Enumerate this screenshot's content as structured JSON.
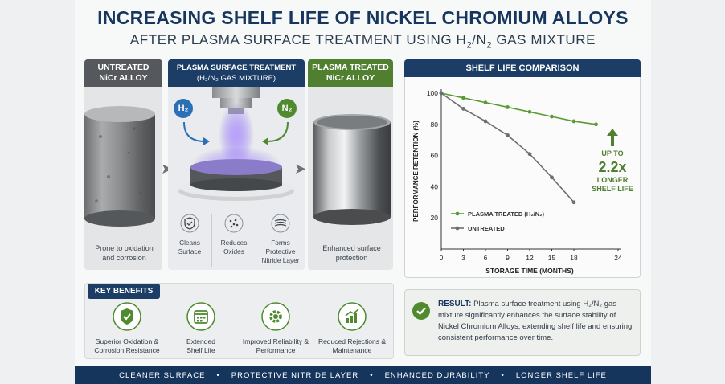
{
  "title": "INCREASING SHELF LIFE OF NICKEL CHROMIUM ALLOYS",
  "subtitle_prefix": "AFTER PLASMA SURFACE TREATMENT USING H",
  "subtitle_sub1": "2",
  "subtitle_mid": "/N",
  "subtitle_sub2": "2",
  "subtitle_suffix": " GAS MIXTURE",
  "panels": {
    "untreated": {
      "line1": "UNTREATED",
      "line2": "NiCr ALLOY",
      "caption": "Prone to oxidation and corrosion"
    },
    "plasma": {
      "line1": "PLASMA SURFACE TREATMENT",
      "line2": "(H₂/N₂ GAS MIXTURE)",
      "h2": "H₂",
      "n2": "N₂",
      "steps": [
        {
          "label": "Cleans Surface",
          "icon": "shield-check-icon"
        },
        {
          "label": "Reduces Oxides",
          "icon": "dots-icon"
        },
        {
          "label": "Forms Protective Nitride Layer",
          "icon": "layers-icon"
        }
      ]
    },
    "treated": {
      "line1": "PLASMA TREATED",
      "line2": "NiCr ALLOY",
      "caption": "Enhanced surface protection"
    }
  },
  "benefits": {
    "title": "KEY BENEFITS",
    "items": [
      {
        "label": "Superior Oxidation & Corrosion Resistance",
        "icon": "shield-check-icon"
      },
      {
        "label": "Extended Shelf Life",
        "icon": "calendar-icon"
      },
      {
        "label": "Improved Reliability & Performance",
        "icon": "gear-icon"
      },
      {
        "label": "Reduced Rejections & Maintenance",
        "icon": "bar-chart-icon"
      }
    ]
  },
  "chart_title": "SHELF LIFE COMPARISON",
  "annotation": {
    "line1": "UP TO",
    "value": "2.2x",
    "line2": "LONGER",
    "line3": "SHELF LIFE"
  },
  "chart_data": {
    "type": "line",
    "xlabel": "STORAGE TIME (MONTHS)",
    "ylabel": "PERFORMANCE RETENTION (%)",
    "x": [
      0,
      3,
      6,
      9,
      12,
      15,
      18,
      24
    ],
    "yticks": [
      0,
      20,
      40,
      60,
      80,
      100
    ],
    "xlim": [
      0,
      24
    ],
    "ylim": [
      0,
      100
    ],
    "legend_position": "bottom-left",
    "series": [
      {
        "name": "PLASMA TREATED (H₂/N₂)",
        "color": "#5a9a34",
        "x": [
          0,
          3,
          6,
          9,
          12,
          15,
          18,
          21
        ],
        "values": [
          100,
          97,
          94,
          91,
          88,
          85,
          82,
          80
        ]
      },
      {
        "name": "UNTREATED",
        "color": "#6b6f73",
        "x": [
          0,
          3,
          6,
          9,
          12,
          15,
          18
        ],
        "values": [
          100,
          90,
          82,
          73,
          61,
          46,
          30
        ]
      }
    ]
  },
  "result": {
    "label": "RESULT:",
    "text": "Plasma surface treatment using H₂/N₂ gas mixture significantly enhances the surface stability of Nickel Chromium Alloys, extending shelf life and ensuring consistent performance over time."
  },
  "footer": [
    "CLEANER SURFACE",
    "PROTECTIVE NITRIDE LAYER",
    "ENHANCED DURABILITY",
    "LONGER SHELF LIFE"
  ],
  "colors": {
    "navy": "#17365d",
    "green": "#4f7f2f",
    "gray": "#5f6368",
    "line_green": "#5a9a34"
  }
}
